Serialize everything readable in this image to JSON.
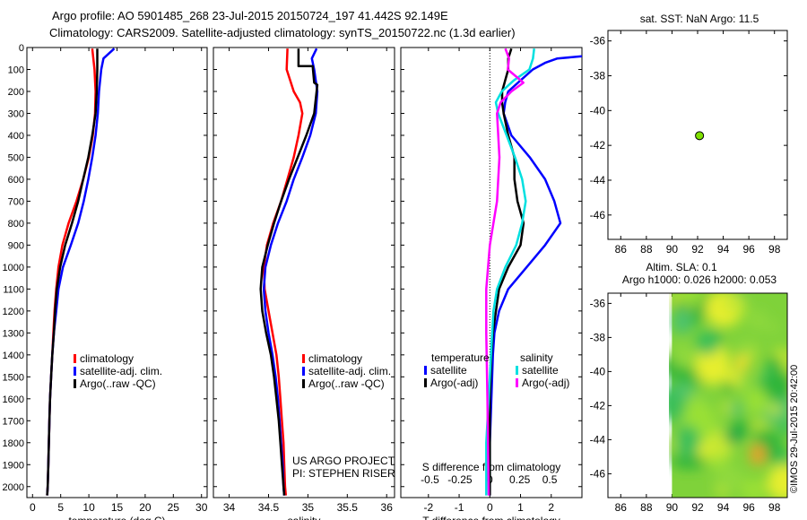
{
  "header": {
    "title_line1": "Argo profile: AO 5901485_268 23-Jul-2015 20150724_197 41.442S 92.149E",
    "title_line2": "Climatology: CARS2009. Satellite-adjusted climatology: synTS_20150722.nc (1.3d earlier)"
  },
  "colors": {
    "climatology": "#ff0000",
    "satellite": "#0000ff",
    "argo": "#000000",
    "sal_satellite": "#00e0e0",
    "sal_argo": "#ff00ff",
    "marker": "#7fe000"
  },
  "chart_data": [
    {
      "type": "line",
      "id": "temperature",
      "xlabel": "temperature (deg C)",
      "xlim": [
        -1,
        31
      ],
      "ylim": [
        2050,
        0
      ],
      "xticks": [
        "0",
        "5",
        "10",
        "15",
        "20",
        "25",
        "30"
      ],
      "yticks": [
        "0",
        "100",
        "200",
        "300",
        "400",
        "500",
        "600",
        "700",
        "800",
        "900",
        "1000",
        "1100",
        "1200",
        "1300",
        "1400",
        "1500",
        "1600",
        "1700",
        "1800",
        "1900",
        "2000"
      ],
      "legend": [
        "climatology",
        "satellite-adj. clim.",
        "Argo(..raw -QC)"
      ],
      "series": [
        {
          "name": "climatology",
          "color": "climatology",
          "points": [
            [
              10.6,
              5
            ],
            [
              11.0,
              100
            ],
            [
              11.2,
              200
            ],
            [
              11.1,
              300
            ],
            [
              10.7,
              400
            ],
            [
              10.0,
              500
            ],
            [
              9.0,
              600
            ],
            [
              7.8,
              700
            ],
            [
              6.4,
              800
            ],
            [
              5.3,
              900
            ],
            [
              4.6,
              1000
            ],
            [
              4.2,
              1100
            ],
            [
              3.9,
              1200
            ],
            [
              3.7,
              1300
            ],
            [
              3.5,
              1400
            ],
            [
              3.3,
              1500
            ],
            [
              3.1,
              1600
            ],
            [
              3.0,
              1700
            ],
            [
              2.9,
              1800
            ],
            [
              2.8,
              1900
            ],
            [
              2.7,
              2000
            ],
            [
              2.6,
              2040
            ]
          ]
        },
        {
          "name": "satellite-adj. clim.",
          "color": "satellite",
          "points": [
            [
              14.5,
              5
            ],
            [
              12.6,
              50
            ],
            [
              12.2,
              100
            ],
            [
              11.8,
              200
            ],
            [
              11.6,
              300
            ],
            [
              11.2,
              400
            ],
            [
              10.6,
              500
            ],
            [
              9.9,
              600
            ],
            [
              9.1,
              700
            ],
            [
              8.1,
              800
            ],
            [
              6.8,
              900
            ],
            [
              5.4,
              1000
            ],
            [
              4.6,
              1100
            ],
            [
              4.2,
              1200
            ],
            [
              3.8,
              1300
            ],
            [
              3.5,
              1400
            ],
            [
              3.3,
              1500
            ],
            [
              3.1,
              1600
            ],
            [
              3.0,
              1700
            ],
            [
              2.9,
              1800
            ],
            [
              2.8,
              1900
            ],
            [
              2.7,
              2000
            ],
            [
              2.6,
              2040
            ]
          ]
        },
        {
          "name": "Argo(..raw -QC)",
          "color": "argo",
          "points": [
            [
              11.5,
              5
            ],
            [
              11.5,
              100
            ],
            [
              11.4,
              200
            ],
            [
              11.2,
              300
            ],
            [
              10.6,
              400
            ],
            [
              9.9,
              500
            ],
            [
              9.0,
              600
            ],
            [
              8.1,
              700
            ],
            [
              7.0,
              800
            ],
            [
              5.8,
              900
            ],
            [
              4.9,
              1000
            ],
            [
              4.3,
              1100
            ],
            [
              4.0,
              1200
            ],
            [
              3.8,
              1300
            ],
            [
              3.5,
              1400
            ],
            [
              3.3,
              1500
            ],
            [
              3.1,
              1600
            ],
            [
              3.0,
              1700
            ],
            [
              2.9,
              1800
            ],
            [
              2.8,
              1900
            ],
            [
              2.7,
              2000
            ],
            [
              2.6,
              2040
            ]
          ]
        }
      ]
    },
    {
      "type": "line",
      "id": "salinity",
      "xlabel": "salinity",
      "xlim": [
        33.8,
        36.1
      ],
      "ylim": [
        2050,
        0
      ],
      "xticks": [
        "34",
        "34.5",
        "35",
        "35.5",
        "36"
      ],
      "legend": [
        "climatology",
        "satellite-adj. clim.",
        "Argo(..raw -QC)"
      ],
      "credit_line1": "US ARGO PROJECT",
      "credit_line2": "PI: STEPHEN RISER",
      "series": [
        {
          "name": "climatology",
          "color": "climatology",
          "points": [
            [
              34.74,
              5
            ],
            [
              34.73,
              100
            ],
            [
              34.82,
              200
            ],
            [
              34.9,
              250
            ],
            [
              34.93,
              300
            ],
            [
              34.88,
              400
            ],
            [
              34.82,
              500
            ],
            [
              34.74,
              600
            ],
            [
              34.66,
              700
            ],
            [
              34.56,
              800
            ],
            [
              34.48,
              900
            ],
            [
              34.44,
              1000
            ],
            [
              34.45,
              1100
            ],
            [
              34.5,
              1200
            ],
            [
              34.55,
              1300
            ],
            [
              34.6,
              1400
            ],
            [
              34.63,
              1500
            ],
            [
              34.65,
              1600
            ],
            [
              34.67,
              1700
            ],
            [
              34.69,
              1800
            ],
            [
              34.7,
              1900
            ],
            [
              34.71,
              2000
            ],
            [
              34.72,
              2040
            ]
          ]
        },
        {
          "name": "satellite-adj. clim.",
          "color": "satellite",
          "points": [
            [
              35.11,
              5
            ],
            [
              35.05,
              50
            ],
            [
              35.08,
              100
            ],
            [
              35.12,
              200
            ],
            [
              35.1,
              300
            ],
            [
              35.03,
              400
            ],
            [
              34.93,
              500
            ],
            [
              34.82,
              600
            ],
            [
              34.73,
              700
            ],
            [
              34.62,
              800
            ],
            [
              34.53,
              900
            ],
            [
              34.46,
              1000
            ],
            [
              34.44,
              1100
            ],
            [
              34.46,
              1200
            ],
            [
              34.5,
              1300
            ],
            [
              34.55,
              1400
            ],
            [
              34.59,
              1500
            ],
            [
              34.62,
              1600
            ],
            [
              34.64,
              1700
            ],
            [
              34.66,
              1800
            ],
            [
              34.68,
              1900
            ],
            [
              34.69,
              2000
            ],
            [
              34.7,
              2040
            ]
          ]
        },
        {
          "name": "Argo(..raw -QC)",
          "color": "argo",
          "points": [
            [
              34.88,
              5
            ],
            [
              34.88,
              85
            ],
            [
              35.06,
              85
            ],
            [
              35.08,
              160
            ],
            [
              35.12,
              170
            ],
            [
              35.08,
              300
            ],
            [
              34.98,
              400
            ],
            [
              34.87,
              500
            ],
            [
              34.76,
              600
            ],
            [
              34.66,
              700
            ],
            [
              34.57,
              800
            ],
            [
              34.49,
              900
            ],
            [
              34.42,
              1000
            ],
            [
              34.4,
              1100
            ],
            [
              34.42,
              1200
            ],
            [
              34.47,
              1300
            ],
            [
              34.53,
              1400
            ],
            [
              34.57,
              1500
            ],
            [
              34.6,
              1600
            ],
            [
              34.63,
              1700
            ],
            [
              34.65,
              1800
            ],
            [
              34.67,
              1900
            ],
            [
              34.69,
              2000
            ],
            [
              34.7,
              2040
            ]
          ]
        }
      ]
    },
    {
      "type": "line",
      "id": "difference",
      "xlabel": "T difference from climatology",
      "xlabel_top": "S difference from climatology",
      "xlim": [
        -2.9,
        3.0
      ],
      "s_scale": 3.9,
      "ylim": [
        2050,
        0
      ],
      "xticks": [
        "-2",
        "-1",
        "0",
        "1",
        "2"
      ],
      "sticks": [
        "-0.5",
        "-0.25",
        "0",
        "0.25",
        "0.5"
      ],
      "legend_header_temp": "temperature",
      "legend_header_sal": "salinity",
      "legend_temp": [
        "satellite",
        "Argo(-adj)"
      ],
      "legend_sal": [
        "satellite",
        "Argo(-adj)"
      ],
      "series": [
        {
          "name": "T satellite",
          "color": "satellite",
          "points": [
            [
              3.0,
              40
            ],
            [
              2.2,
              50
            ],
            [
              1.8,
              70
            ],
            [
              1.4,
              100
            ],
            [
              1.0,
              150
            ],
            [
              0.6,
              200
            ],
            [
              0.5,
              250
            ],
            [
              0.45,
              300
            ],
            [
              0.7,
              400
            ],
            [
              1.3,
              500
            ],
            [
              1.8,
              600
            ],
            [
              2.1,
              700
            ],
            [
              2.3,
              800
            ],
            [
              1.8,
              900
            ],
            [
              1.2,
              1000
            ],
            [
              0.6,
              1100
            ],
            [
              0.3,
              1200
            ],
            [
              0.15,
              1300
            ],
            [
              0.1,
              1400
            ],
            [
              0.05,
              1600
            ],
            [
              0.0,
              1800
            ],
            [
              0.0,
              2040
            ]
          ]
        },
        {
          "name": "T Argo(-adj)",
          "color": "argo",
          "points": [
            [
              0.7,
              5
            ],
            [
              0.6,
              50
            ],
            [
              0.6,
              100
            ],
            [
              0.5,
              150
            ],
            [
              0.4,
              200
            ],
            [
              0.4,
              250
            ],
            [
              0.45,
              300
            ],
            [
              0.6,
              400
            ],
            [
              0.8,
              500
            ],
            [
              0.8,
              600
            ],
            [
              0.9,
              700
            ],
            [
              1.1,
              800
            ],
            [
              1.0,
              900
            ],
            [
              0.6,
              1000
            ],
            [
              0.3,
              1100
            ],
            [
              0.2,
              1200
            ],
            [
              0.1,
              1300
            ],
            [
              0.05,
              1400
            ],
            [
              0.0,
              1600
            ],
            [
              0.0,
              2040
            ]
          ]
        },
        {
          "name": "S satellite",
          "color": "sal_satellite",
          "points": [
            [
              0.37,
              5
            ],
            [
              0.36,
              50
            ],
            [
              0.33,
              100
            ],
            [
              0.2,
              150
            ],
            [
              0.1,
              200
            ],
            [
              0.05,
              250
            ],
            [
              0.07,
              300
            ],
            [
              0.14,
              400
            ],
            [
              0.21,
              500
            ],
            [
              0.27,
              600
            ],
            [
              0.3,
              700
            ],
            [
              0.27,
              800
            ],
            [
              0.22,
              900
            ],
            [
              0.13,
              1000
            ],
            [
              0.06,
              1100
            ],
            [
              0.03,
              1200
            ],
            [
              0.01,
              1400
            ],
            [
              -0.01,
              1600
            ],
            [
              -0.03,
              1800
            ],
            [
              -0.03,
              2040
            ]
          ]
        },
        {
          "name": "S Argo(-adj)",
          "color": "sal_argo",
          "points": [
            [
              0.13,
              5
            ],
            [
              0.16,
              50
            ],
            [
              0.15,
              100
            ],
            [
              0.28,
              160
            ],
            [
              0.18,
              200
            ],
            [
              0.09,
              250
            ],
            [
              0.06,
              300
            ],
            [
              0.08,
              500
            ],
            [
              0.06,
              700
            ],
            [
              0.03,
              800
            ],
            [
              0.0,
              900
            ],
            [
              -0.03,
              1100
            ],
            [
              -0.03,
              1300
            ],
            [
              -0.02,
              1600
            ],
            [
              -0.01,
              2040
            ]
          ]
        }
      ]
    },
    {
      "type": "scatter",
      "id": "sst-map",
      "title": "sat. SST: NaN Argo: 11.5",
      "xlim": [
        85,
        99
      ],
      "ylim": [
        -47.4,
        -35.4
      ],
      "xticks": [
        "86",
        "88",
        "90",
        "92",
        "94",
        "96",
        "98"
      ],
      "yticks": [
        "-36",
        "-38",
        "-40",
        "-42",
        "-44",
        "-46"
      ],
      "points": [
        [
          92.149,
          -41.442
        ]
      ]
    },
    {
      "type": "heatmap",
      "id": "sla-map",
      "title_line1": "Altim. SLA: 0.1",
      "title_line2": "Argo h1000: 0.026 h2000: 0.053",
      "xlim": [
        85,
        99
      ],
      "ylim": [
        -47.4,
        -35.4
      ],
      "xticks": [
        "86",
        "88",
        "90",
        "92",
        "94",
        "96",
        "98"
      ],
      "yticks": [
        "-36",
        "-38",
        "-40",
        "-42",
        "-44",
        "-46"
      ],
      "data_extent_lon": [
        90,
        99
      ]
    }
  ],
  "footer": {
    "side_credit": "©IMOS 29-Jul-2015 20:42:00"
  }
}
